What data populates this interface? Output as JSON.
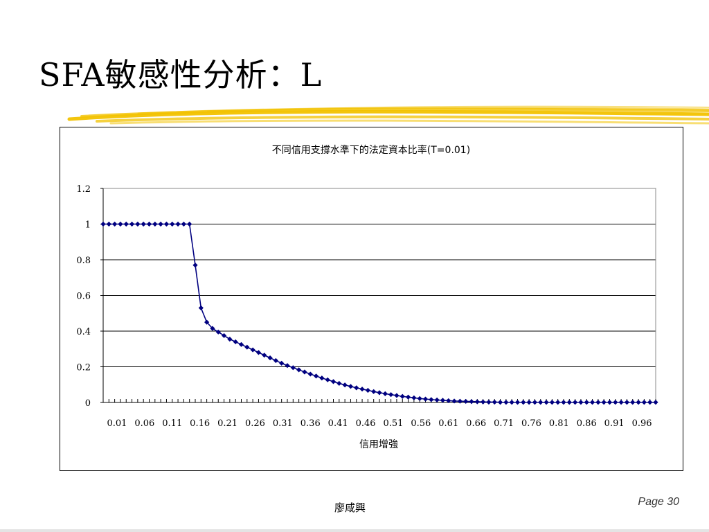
{
  "slide": {
    "title": "SFA敏感性分析：L",
    "author": "廖咸興",
    "page_label": "Page 30",
    "accent_color": "#f2c200"
  },
  "chart_data": {
    "type": "line",
    "title": "不同信用支撐水準下的法定資本比率(T=0.01)",
    "xlabel": "信用增強",
    "ylabel": "",
    "x": [
      0.01,
      0.02,
      0.03,
      0.04,
      0.05,
      0.06,
      0.07,
      0.08,
      0.09,
      0.1,
      0.11,
      0.12,
      0.13,
      0.14,
      0.15,
      0.16,
      0.17,
      0.18,
      0.19,
      0.2,
      0.21,
      0.22,
      0.23,
      0.24,
      0.25,
      0.26,
      0.27,
      0.28,
      0.29,
      0.3,
      0.31,
      0.32,
      0.33,
      0.34,
      0.35,
      0.36,
      0.37,
      0.38,
      0.39,
      0.4,
      0.41,
      0.42,
      0.43,
      0.44,
      0.45,
      0.46,
      0.47,
      0.48,
      0.49,
      0.5,
      0.51,
      0.52,
      0.53,
      0.54,
      0.55,
      0.56,
      0.57,
      0.58,
      0.59,
      0.6,
      0.61,
      0.62,
      0.63,
      0.64,
      0.65,
      0.66,
      0.67,
      0.68,
      0.69,
      0.7,
      0.71,
      0.72,
      0.73,
      0.74,
      0.75,
      0.76,
      0.77,
      0.78,
      0.79,
      0.8,
      0.81,
      0.82,
      0.83,
      0.84,
      0.85,
      0.86,
      0.87,
      0.88,
      0.89,
      0.9,
      0.91,
      0.92,
      0.93,
      0.94,
      0.95,
      0.96,
      0.97
    ],
    "x_tick_labels": [
      "0.01",
      "0.06",
      "0.11",
      "0.16",
      "0.21",
      "0.26",
      "0.31",
      "0.36",
      "0.41",
      "0.46",
      "0.51",
      "0.56",
      "0.61",
      "0.66",
      "0.71",
      "0.76",
      "0.81",
      "0.86",
      "0.91",
      "0.96"
    ],
    "series": [
      {
        "color": "#000080",
        "values": [
          1,
          1,
          1,
          1,
          1,
          1,
          1,
          1,
          1,
          1,
          1,
          1,
          1,
          1,
          1,
          1,
          0.77,
          0.53,
          0.45,
          0.415,
          0.395,
          0.375,
          0.355,
          0.34,
          0.325,
          0.31,
          0.295,
          0.28,
          0.265,
          0.25,
          0.235,
          0.22,
          0.207,
          0.195,
          0.183,
          0.171,
          0.159,
          0.148,
          0.137,
          0.127,
          0.117,
          0.107,
          0.098,
          0.09,
          0.082,
          0.075,
          0.068,
          0.061,
          0.055,
          0.049,
          0.044,
          0.039,
          0.034,
          0.03,
          0.026,
          0.022,
          0.019,
          0.016,
          0.014,
          0.012,
          0.01,
          0.008,
          0.007,
          0.006,
          0.005,
          0.004,
          0.003,
          0.002,
          0.002,
          0.001,
          0.001,
          0.001,
          0.001,
          0.001,
          0.001,
          0.001,
          0.001,
          0.001,
          0.001,
          0.001,
          0.001,
          0.001,
          0.001,
          0.001,
          0.001,
          0.001,
          0.001,
          0.001,
          0.001,
          0.001,
          0.001,
          0.001,
          0.001,
          0.001,
          0.001,
          0.001,
          0.001
        ]
      }
    ],
    "ylim": [
      0,
      1.2
    ],
    "y_ticks": [
      0,
      0.2,
      0.4,
      0.6,
      0.8,
      1,
      1.2
    ],
    "y_tick_labels": [
      "0",
      "0.2",
      "0.4",
      "0.6",
      "0.8",
      "1",
      "1.2"
    ],
    "grid": true,
    "legend": "none"
  }
}
